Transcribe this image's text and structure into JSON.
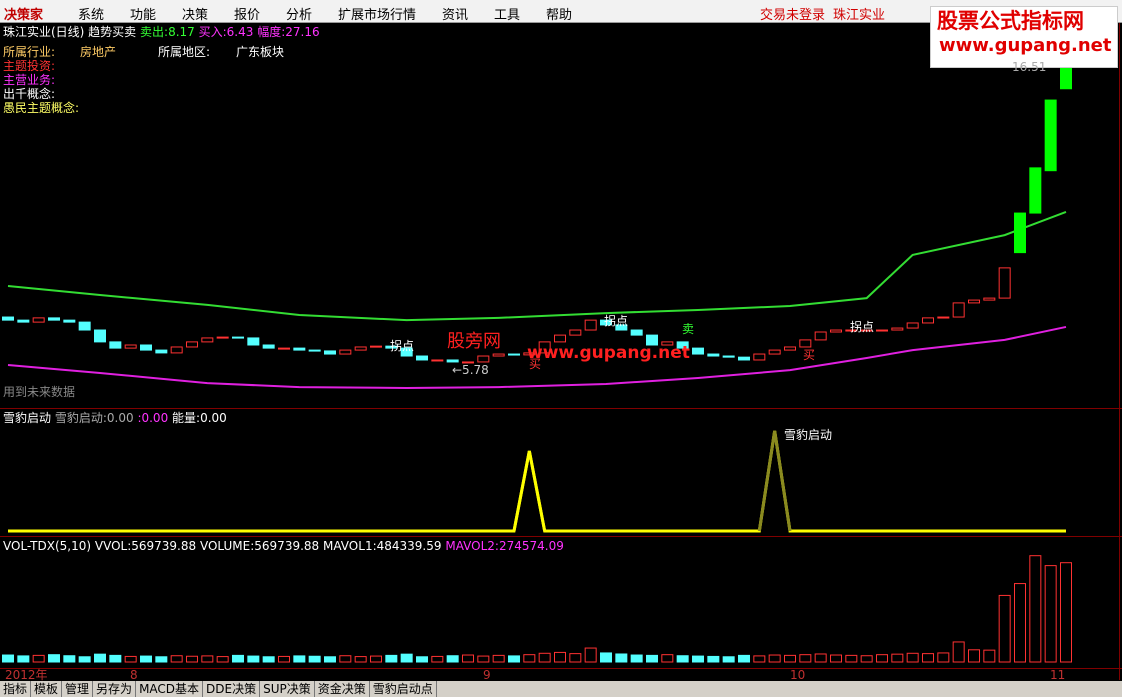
{
  "menu": {
    "logo": "决策家",
    "items": [
      "系统",
      "功能",
      "决策",
      "报价",
      "分析",
      "扩展市场行情",
      "资讯",
      "工具",
      "帮助"
    ],
    "login": "交易未登录",
    "stock": "珠江实业"
  },
  "watermark": {
    "title": "股票公式指标网",
    "url": "www.gupang.net"
  },
  "price_panel": {
    "title": "珠江实业(日线) 趋势买卖",
    "sell_label": "卖出:",
    "sell": 8.17,
    "buy_label": "买入:",
    "buy": 6.43,
    "range_label": "幅度:",
    "range": 27.16,
    "industry_label": "所属行业:",
    "industry": "房地产",
    "region_label": "所属地区:",
    "region": "广东板块",
    "fields": [
      "主题投资:",
      "主营业务:",
      "出千概念:",
      "愚民主题概念:"
    ],
    "high": 16.51,
    "low": "←5.78",
    "turn": [
      "拐点",
      "拐点",
      "拐点"
    ],
    "sell_sign": "卖",
    "buy_signs": [
      "买",
      "买"
    ],
    "note": "用到未来数据",
    "site_name": "股旁网",
    "site_url": "www.gupang.net",
    "ylim": [
      4.4,
      17.78
    ],
    "up_color": "#ff3232",
    "down_color": "#54ffff",
    "closes": [
      7.51,
      7.44,
      7.59,
      7.51,
      7.44,
      7.16,
      6.74,
      6.52,
      6.63,
      6.45,
      6.35,
      6.56,
      6.74,
      6.88,
      6.91,
      6.88,
      6.63,
      6.52,
      6.52,
      6.45,
      6.42,
      6.31,
      6.45,
      6.56,
      6.59,
      6.52,
      6.24,
      6.1,
      6.1,
      6.03,
      6.03,
      6.24,
      6.31,
      6.28,
      6.35,
      6.74,
      6.98,
      7.16,
      7.51,
      7.34,
      7.16,
      6.98,
      6.63,
      6.74,
      6.52,
      6.31,
      6.24,
      6.2,
      6.1,
      6.31,
      6.45,
      6.56,
      6.81,
      7.09,
      7.16,
      7.16,
      7.16,
      7.16,
      7.23,
      7.41,
      7.59,
      7.62,
      8.12,
      8.22,
      8.29,
      9.36,
      11.3,
      12.9,
      15.3,
      16.51
    ],
    "opens": [
      7.62,
      7.51,
      7.44,
      7.59,
      7.51,
      7.44,
      7.16,
      6.74,
      6.52,
      6.63,
      6.45,
      6.35,
      6.56,
      6.74,
      6.88,
      6.91,
      6.88,
      6.63,
      6.52,
      6.52,
      6.45,
      6.42,
      6.31,
      6.45,
      6.56,
      6.59,
      6.52,
      6.24,
      6.1,
      6.1,
      6.03,
      6.03,
      6.24,
      6.31,
      6.28,
      6.35,
      6.74,
      6.98,
      7.16,
      7.51,
      7.34,
      7.16,
      6.98,
      6.63,
      6.74,
      6.52,
      6.31,
      6.24,
      6.2,
      6.1,
      6.31,
      6.45,
      6.56,
      6.81,
      7.09,
      7.16,
      7.16,
      7.16,
      7.16,
      7.23,
      7.41,
      7.59,
      7.62,
      8.12,
      8.22,
      8.29,
      9.9,
      11.3,
      12.8,
      15.7
    ],
    "highlight": {
      "from": 66,
      "color": "#00ff00"
    },
    "upper_band": {
      "color": "#33dd33",
      "x": [
        0,
        6,
        13,
        19,
        26,
        32,
        39,
        45,
        51,
        56,
        59,
        65,
        69
      ],
      "values": [
        8.72,
        8.4,
        8.05,
        7.69,
        7.51,
        7.59,
        7.76,
        7.87,
        8.01,
        8.29,
        9.82,
        10.52,
        11.34
      ]
    },
    "lower_band": {
      "color": "#e020e0",
      "x": [
        0,
        6,
        13,
        19,
        26,
        32,
        39,
        45,
        51,
        56,
        59,
        65,
        69
      ],
      "values": [
        5.92,
        5.64,
        5.28,
        5.14,
        5.11,
        5.14,
        5.25,
        5.46,
        5.74,
        6.17,
        6.45,
        6.81,
        7.27
      ]
    }
  },
  "signal_panel": {
    "name": "雪豹启动",
    "value_label": "雪豹启动:",
    "value": "0.00",
    "blank_label": ":",
    "blank": "0.00",
    "energy_label": "能量:",
    "energy": "0.00",
    "spike_label": "雪豹启动",
    "ylim": [
      0,
      1
    ],
    "color": "#ffff00",
    "spike_colors": [
      "#ffff00",
      "#8a8a20"
    ],
    "values": [
      0,
      0,
      0,
      0,
      0,
      0,
      0,
      0,
      0,
      0,
      0,
      0,
      0,
      0,
      0,
      0,
      0,
      0,
      0,
      0,
      0,
      0,
      0,
      0,
      0,
      0,
      0,
      0,
      0,
      0,
      0,
      0,
      0,
      0,
      0.8,
      0,
      0,
      0,
      0,
      0,
      0,
      0,
      0,
      0,
      0,
      0,
      0,
      0,
      0,
      0,
      1,
      0,
      0,
      0,
      0,
      0,
      0,
      0,
      0,
      0,
      0,
      0,
      0,
      0,
      0,
      0,
      0,
      0,
      0,
      0
    ]
  },
  "volume_panel": {
    "name": "VOL-TDX(5,10)",
    "vvol_label": "VVOL:",
    "vvol": 569739.88,
    "volume_label": "VOLUME:",
    "volume": 569739.88,
    "mavol1_label": "MAVOL1:",
    "mavol1": 484339.59,
    "mavol2_label": "MAVOL2:",
    "mavol2": 274574.09,
    "ylim": [
      0,
      700000
    ],
    "values": [
      40000,
      35000,
      38000,
      42000,
      36000,
      30000,
      45000,
      38000,
      32000,
      34000,
      30000,
      36000,
      33000,
      35000,
      31000,
      38000,
      34000,
      30000,
      32000,
      35000,
      33000,
      30000,
      36000,
      31000,
      34000,
      38000,
      45000,
      30000,
      32000,
      36000,
      40000,
      34000,
      38000,
      35000,
      42000,
      50000,
      55000,
      48000,
      80000,
      52000,
      46000,
      40000,
      38000,
      42000,
      36000,
      34000,
      32000,
      30000,
      38000,
      35000,
      40000,
      38000,
      42000,
      46000,
      40000,
      38000,
      36000,
      42000,
      45000,
      50000,
      48000,
      52000,
      115000,
      70000,
      68000,
      382000,
      450000,
      610000,
      553000,
      569739.88
    ]
  },
  "date_axis": [
    "2012年",
    "8",
    "9",
    "10",
    "11"
  ],
  "tabs": [
    "指标",
    "模板",
    "管理",
    "另存为",
    "MACD基本",
    "DDE决策",
    "SUP决策",
    "资金决策",
    "雪豹启动点"
  ]
}
